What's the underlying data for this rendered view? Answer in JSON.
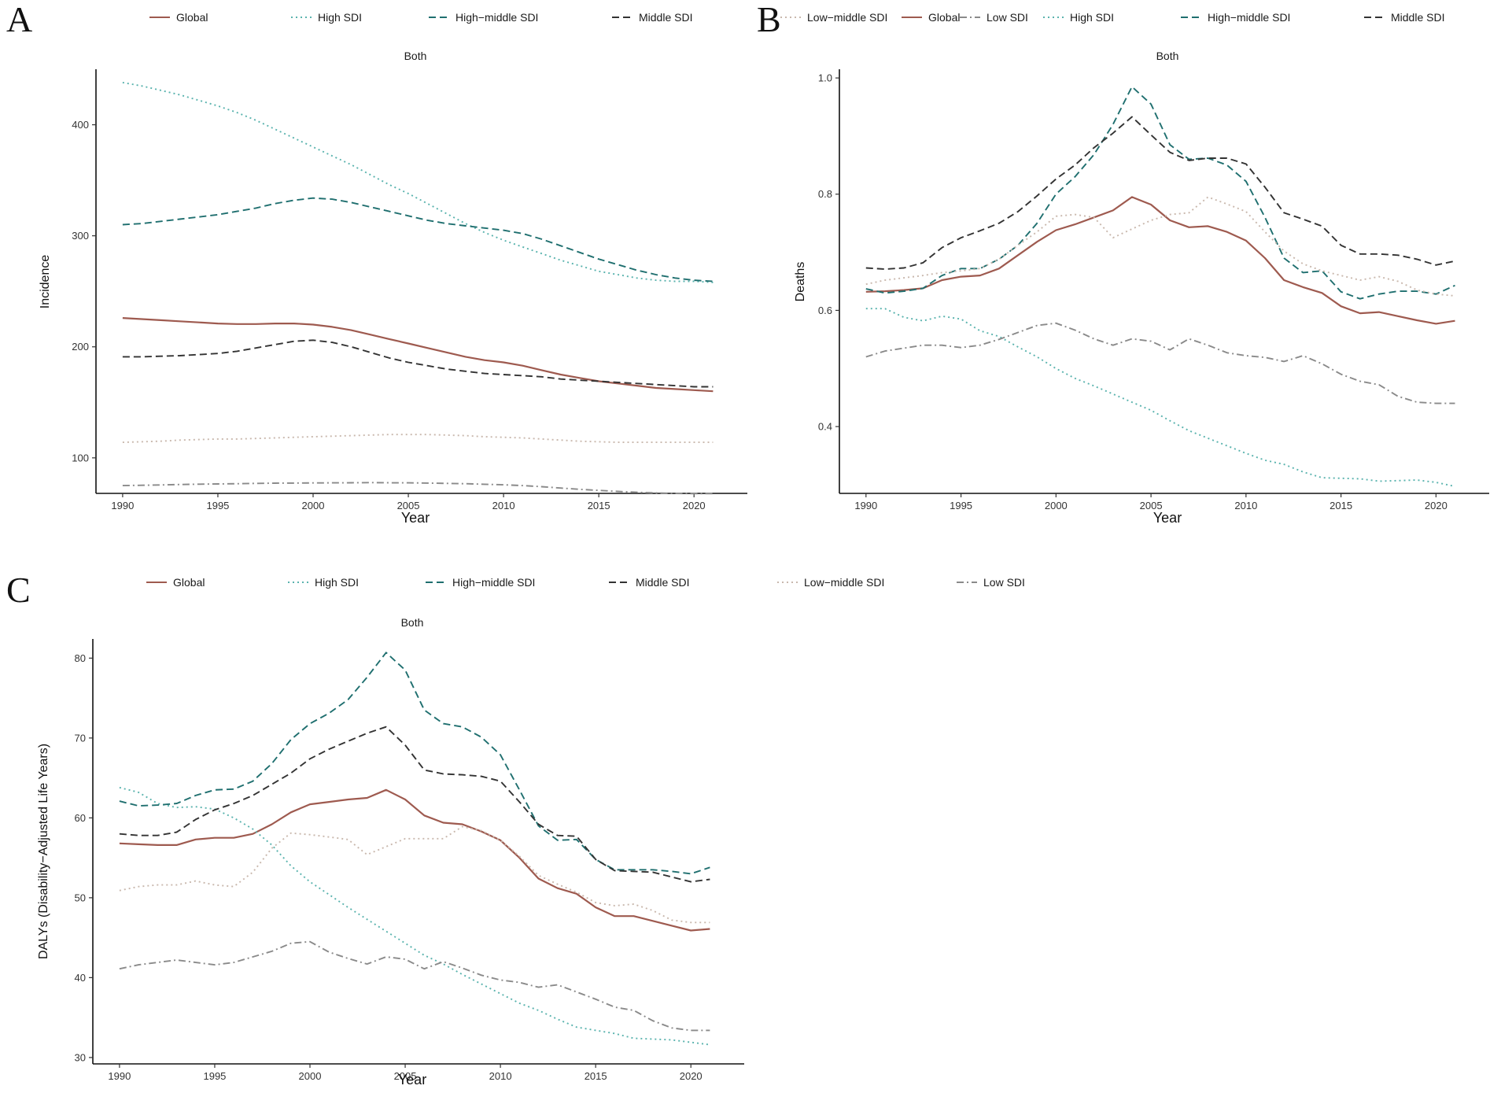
{
  "colors": {
    "Global": "#9e5a4f",
    "High SDI": "#5ab3ae",
    "High-middle SDI": "#1f6f6f",
    "Middle SDI": "#333333",
    "Low-middle SDI": "#c9b8ad",
    "Low SDI": "#8a8a8a"
  },
  "legend_labels": [
    "Global",
    "High SDI",
    "High−middle SDI",
    "Middle SDI",
    "Low−middle SDI",
    "Low SDI"
  ],
  "chart_data": [
    {
      "panel": "A",
      "type": "line",
      "facet": "Both",
      "xlabel": "Year",
      "ylabel": "Incidence",
      "xlim": [
        1988.6,
        2022.8
      ],
      "ylim": [
        68,
        450
      ],
      "xticks": [
        1990,
        1995,
        2000,
        2005,
        2010,
        2015,
        2020
      ],
      "yticks": [
        100,
        200,
        300,
        400
      ],
      "x": [
        1990,
        1991,
        1992,
        1993,
        1994,
        1995,
        1996,
        1997,
        1998,
        1999,
        2000,
        2001,
        2002,
        2003,
        2004,
        2005,
        2006,
        2007,
        2008,
        2009,
        2010,
        2011,
        2012,
        2013,
        2014,
        2015,
        2016,
        2017,
        2018,
        2019,
        2020,
        2021
      ],
      "series": [
        {
          "name": "Global",
          "values": [
            226,
            225,
            224,
            223,
            222,
            221,
            220.5,
            220.5,
            221,
            221,
            220,
            218,
            215,
            211,
            207,
            203,
            199,
            195,
            191,
            188,
            186,
            183,
            179,
            175,
            172,
            169,
            167,
            165,
            163,
            162,
            161,
            160
          ]
        },
        {
          "name": "High SDI",
          "values": [
            438,
            435,
            431,
            427,
            422,
            417,
            411,
            404,
            396,
            388,
            380,
            372,
            364,
            355,
            346,
            338,
            329,
            320,
            311,
            303,
            296,
            290,
            284,
            278,
            273,
            268,
            265,
            262,
            260,
            259,
            259,
            258
          ]
        },
        {
          "name": "High-middle SDI",
          "values": [
            310,
            311,
            313,
            315,
            317,
            319,
            322,
            325,
            329,
            332,
            334,
            333,
            330,
            326,
            322,
            318,
            314,
            311,
            309,
            307,
            305,
            302,
            297,
            291,
            285,
            279,
            274,
            269,
            265,
            262,
            260,
            259
          ]
        },
        {
          "name": "Middle SDI",
          "values": [
            191,
            191,
            191.5,
            192,
            193,
            194,
            196,
            199,
            202,
            205,
            206,
            204,
            200,
            195,
            190,
            186,
            183,
            180,
            178,
            176,
            175,
            174,
            173,
            171,
            170,
            169,
            168,
            167,
            166,
            165,
            164,
            164
          ]
        },
        {
          "name": "Low-middle SDI",
          "values": [
            114,
            114.5,
            115,
            116,
            116.5,
            117,
            117,
            117.5,
            118,
            118.5,
            119,
            119.5,
            120,
            120.5,
            121,
            121,
            121,
            120.5,
            120,
            119,
            118.5,
            118,
            117,
            116,
            115,
            114.5,
            114,
            114,
            114,
            114,
            114,
            114
          ]
        },
        {
          "name": "Low SDI",
          "values": [
            75,
            75.3,
            75.6,
            76,
            76.3,
            76.5,
            76.7,
            77,
            77.2,
            77.3,
            77.4,
            77.5,
            77.6,
            77.7,
            77.6,
            77.5,
            77.3,
            77,
            76.7,
            76.2,
            75.7,
            75,
            74,
            72.8,
            71.7,
            70.7,
            69.8,
            69,
            68.4,
            68,
            67.8,
            67.8
          ]
        }
      ]
    },
    {
      "panel": "B",
      "type": "line",
      "facet": "Both",
      "xlabel": "Year",
      "ylabel": "Deaths",
      "xlim": [
        1988.6,
        2022.8
      ],
      "ylim": [
        0.285,
        1.015
      ],
      "xticks": [
        1990,
        1995,
        2000,
        2005,
        2010,
        2015,
        2020
      ],
      "yticks": [
        0.4,
        0.6,
        0.8,
        1.0
      ],
      "x": [
        1990,
        1991,
        1992,
        1993,
        1994,
        1995,
        1996,
        1997,
        1998,
        1999,
        2000,
        2001,
        2002,
        2003,
        2004,
        2005,
        2006,
        2007,
        2008,
        2009,
        2010,
        2011,
        2012,
        2013,
        2014,
        2015,
        2016,
        2017,
        2018,
        2019,
        2020,
        2021
      ],
      "series": [
        {
          "name": "Global",
          "values": [
            0.632,
            0.633,
            0.635,
            0.638,
            0.652,
            0.658,
            0.66,
            0.672,
            0.695,
            0.718,
            0.738,
            0.748,
            0.76,
            0.772,
            0.795,
            0.782,
            0.755,
            0.743,
            0.745,
            0.735,
            0.72,
            0.69,
            0.652,
            0.64,
            0.63,
            0.607,
            0.595,
            0.597,
            0.59,
            0.583,
            0.577,
            0.582
          ]
        },
        {
          "name": "High SDI",
          "values": [
            0.603,
            0.603,
            0.588,
            0.582,
            0.59,
            0.585,
            0.565,
            0.555,
            0.537,
            0.52,
            0.5,
            0.483,
            0.47,
            0.456,
            0.442,
            0.428,
            0.41,
            0.393,
            0.38,
            0.367,
            0.354,
            0.342,
            0.335,
            0.322,
            0.312,
            0.311,
            0.31,
            0.306,
            0.307,
            0.308,
            0.304,
            0.297
          ]
        },
        {
          "name": "High-middle SDI",
          "values": [
            0.637,
            0.63,
            0.633,
            0.638,
            0.66,
            0.672,
            0.672,
            0.688,
            0.712,
            0.75,
            0.8,
            0.83,
            0.868,
            0.92,
            0.985,
            0.955,
            0.885,
            0.86,
            0.862,
            0.85,
            0.822,
            0.76,
            0.69,
            0.665,
            0.668,
            0.632,
            0.62,
            0.628,
            0.633,
            0.633,
            0.628,
            0.643
          ]
        },
        {
          "name": "Middle SDI",
          "values": [
            0.673,
            0.671,
            0.673,
            0.682,
            0.708,
            0.725,
            0.737,
            0.75,
            0.77,
            0.797,
            0.826,
            0.85,
            0.88,
            0.905,
            0.933,
            0.902,
            0.872,
            0.858,
            0.862,
            0.862,
            0.852,
            0.812,
            0.768,
            0.757,
            0.745,
            0.712,
            0.697,
            0.697,
            0.695,
            0.688,
            0.678,
            0.685
          ]
        },
        {
          "name": "Low-middle SDI",
          "values": [
            0.645,
            0.652,
            0.656,
            0.66,
            0.665,
            0.668,
            0.672,
            0.688,
            0.712,
            0.735,
            0.762,
            0.765,
            0.76,
            0.725,
            0.74,
            0.755,
            0.765,
            0.768,
            0.795,
            0.783,
            0.77,
            0.735,
            0.702,
            0.68,
            0.668,
            0.66,
            0.652,
            0.658,
            0.65,
            0.635,
            0.628,
            0.625
          ]
        },
        {
          "name": "Low SDI",
          "values": [
            0.52,
            0.53,
            0.535,
            0.54,
            0.54,
            0.536,
            0.54,
            0.55,
            0.562,
            0.574,
            0.578,
            0.566,
            0.551,
            0.54,
            0.551,
            0.547,
            0.532,
            0.551,
            0.54,
            0.527,
            0.522,
            0.519,
            0.512,
            0.522,
            0.508,
            0.49,
            0.478,
            0.472,
            0.452,
            0.442,
            0.44,
            0.44
          ]
        }
      ]
    },
    {
      "panel": "C",
      "type": "line",
      "facet": "Both",
      "xlabel": "Year",
      "ylabel": "DALYs (Disability−Adjusted Life Years)",
      "xlim": [
        1988.6,
        2022.8
      ],
      "ylim": [
        29.2,
        82.4
      ],
      "xticks": [
        1990,
        1995,
        2000,
        2005,
        2010,
        2015,
        2020
      ],
      "yticks": [
        30,
        40,
        50,
        60,
        70,
        80
      ],
      "x": [
        1990,
        1991,
        1992,
        1993,
        1994,
        1995,
        1996,
        1997,
        1998,
        1999,
        2000,
        2001,
        2002,
        2003,
        2004,
        2005,
        2006,
        2007,
        2008,
        2009,
        2010,
        2011,
        2012,
        2013,
        2014,
        2015,
        2016,
        2017,
        2018,
        2019,
        2020,
        2021
      ],
      "series": [
        {
          "name": "Global",
          "values": [
            56.8,
            56.7,
            56.6,
            56.6,
            57.3,
            57.5,
            57.5,
            58.0,
            59.2,
            60.7,
            61.7,
            62.0,
            62.3,
            62.5,
            63.5,
            62.3,
            60.3,
            59.4,
            59.2,
            58.3,
            57.2,
            55.0,
            52.4,
            51.2,
            50.5,
            48.8,
            47.7,
            47.7,
            47.1,
            46.5,
            45.9,
            46.1
          ]
        },
        {
          "name": "High SDI",
          "values": [
            63.8,
            63.2,
            61.8,
            61.3,
            61.4,
            61.1,
            60.0,
            58.6,
            56.6,
            54.0,
            52.0,
            50.4,
            48.8,
            47.3,
            45.8,
            44.3,
            42.8,
            41.7,
            40.4,
            39.2,
            38.0,
            36.8,
            35.9,
            34.8,
            33.8,
            33.4,
            33.0,
            32.4,
            32.3,
            32.2,
            31.9,
            31.6
          ]
        },
        {
          "name": "High-middle SDI",
          "values": [
            62.1,
            61.5,
            61.6,
            61.8,
            62.8,
            63.5,
            63.6,
            64.6,
            66.8,
            69.8,
            71.8,
            73.1,
            74.8,
            77.6,
            80.7,
            78.5,
            73.5,
            71.8,
            71.4,
            70.1,
            67.9,
            63.5,
            59.0,
            57.2,
            57.3,
            54.8,
            53.5,
            53.5,
            53.5,
            53.3,
            53.0,
            53.8
          ]
        },
        {
          "name": "Middle SDI",
          "values": [
            58.0,
            57.8,
            57.8,
            58.2,
            59.8,
            61.0,
            61.8,
            62.8,
            64.2,
            65.6,
            67.4,
            68.6,
            69.6,
            70.6,
            71.4,
            69.1,
            66.0,
            65.5,
            65.4,
            65.2,
            64.6,
            62.0,
            59.2,
            57.8,
            57.7,
            54.8,
            53.4,
            53.3,
            53.2,
            52.6,
            52.0,
            52.3
          ]
        },
        {
          "name": "Low-middle SDI",
          "values": [
            50.9,
            51.4,
            51.6,
            51.6,
            52.1,
            51.6,
            51.4,
            53.2,
            56.2,
            58.1,
            57.9,
            57.6,
            57.3,
            55.4,
            56.4,
            57.4,
            57.4,
            57.4,
            58.9,
            58.4,
            57.2,
            55.2,
            52.8,
            51.7,
            50.7,
            49.4,
            49.0,
            49.2,
            48.4,
            47.2,
            46.9,
            46.9
          ]
        },
        {
          "name": "Low SDI",
          "values": [
            41.1,
            41.6,
            41.9,
            42.2,
            41.9,
            41.6,
            41.9,
            42.6,
            43.3,
            44.3,
            44.5,
            43.2,
            42.4,
            41.7,
            42.6,
            42.3,
            41.1,
            42.0,
            41.2,
            40.3,
            39.7,
            39.4,
            38.8,
            39.1,
            38.2,
            37.3,
            36.3,
            35.9,
            34.6,
            33.7,
            33.4,
            33.4
          ]
        }
      ]
    }
  ]
}
